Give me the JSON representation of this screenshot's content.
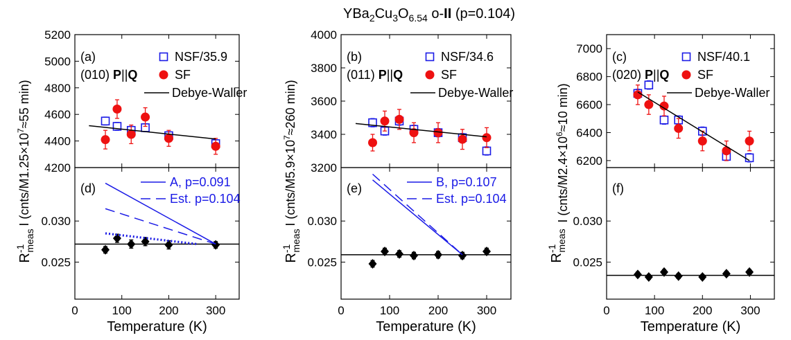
{
  "figure": {
    "title_parts": [
      {
        "t": "YBa",
        "sub": false
      },
      {
        "t": "2",
        "sub": true
      },
      {
        "t": "Cu",
        "sub": false
      },
      {
        "t": "3",
        "sub": true
      },
      {
        "t": "O",
        "sub": false
      },
      {
        "t": "6.54",
        "sub": true
      },
      {
        "t": " o-",
        "sub": false
      },
      {
        "t": "II",
        "sub": false,
        "bold": true
      },
      {
        "t": " (p=0.104)",
        "sub": false
      }
    ],
    "xlabel": "Temperature (K)",
    "x_ticks": [
      0,
      100,
      200,
      300
    ],
    "xlim": [
      0,
      350
    ],
    "colors": {
      "nsf": "#1a1ae6",
      "sf": "#ee1111",
      "dw": "#000000",
      "ref": "#1a1ae6",
      "ratio": "#000000"
    }
  },
  "chart_data": [
    {
      "type": "scatter",
      "panel": "(a)",
      "reflection": "(010)",
      "pq_label": "P||Q",
      "ylabel": "I (cnts/M1.25×10^7≈55 min)",
      "ylabel_parts": [
        {
          "t": "I (cnts/M1.25"
        },
        {
          "t": "×",
          "sym": true
        },
        {
          "t": "10"
        },
        {
          "t": "7",
          "sup": true
        },
        {
          "t": "≈",
          "sym": true
        },
        {
          "t": "55 min)"
        }
      ],
      "ylim": [
        4200,
        5200
      ],
      "y_ticks": [
        4200,
        4400,
        4600,
        4800,
        5000,
        5200
      ],
      "series": [
        {
          "name": "NSF/35.9",
          "marker": "open-square",
          "color": "#1a1ae6",
          "x": [
            65,
            90,
            120,
            150,
            200,
            300
          ],
          "y": [
            4550,
            4510,
            4480,
            4500,
            4440,
            4380
          ],
          "err": [
            30,
            30,
            30,
            30,
            30,
            30
          ]
        },
        {
          "name": "SF",
          "marker": "filled-circle",
          "color": "#ee1111",
          "x": [
            65,
            90,
            120,
            150,
            200,
            300
          ],
          "y": [
            4410,
            4640,
            4450,
            4580,
            4420,
            4360
          ],
          "err": [
            70,
            70,
            70,
            70,
            60,
            60
          ]
        },
        {
          "name": "Debye-Waller",
          "type": "line",
          "color": "#000000",
          "x": [
            30,
            300
          ],
          "y": [
            4515,
            4415
          ]
        }
      ]
    },
    {
      "type": "scatter",
      "panel": "(b)",
      "reflection": "(011)",
      "pq_label": "P||Q",
      "ylabel": "I (cnts/M5.9×10^7≈260 min)",
      "ylabel_parts": [
        {
          "t": "I (cnts/M5.9"
        },
        {
          "t": "×",
          "sym": true
        },
        {
          "t": "10"
        },
        {
          "t": "7",
          "sup": true
        },
        {
          "t": "≈",
          "sym": true
        },
        {
          "t": "260 min)"
        }
      ],
      "ylim": [
        3200,
        4000
      ],
      "y_ticks": [
        3200,
        3400,
        3600,
        3800,
        4000
      ],
      "series": [
        {
          "name": "NSF/34.6",
          "marker": "open-square",
          "color": "#1a1ae6",
          "x": [
            65,
            90,
            120,
            150,
            200,
            250,
            300
          ],
          "y": [
            3470,
            3420,
            3480,
            3430,
            3410,
            3380,
            3300
          ],
          "err": [
            25,
            25,
            25,
            25,
            25,
            25,
            25
          ]
        },
        {
          "name": "SF",
          "marker": "filled-circle",
          "color": "#ee1111",
          "x": [
            65,
            90,
            120,
            150,
            200,
            250,
            300
          ],
          "y": [
            3350,
            3480,
            3490,
            3410,
            3410,
            3370,
            3380
          ],
          "err": [
            50,
            60,
            60,
            60,
            60,
            60,
            60
          ]
        },
        {
          "name": "Debye-Waller",
          "type": "line",
          "color": "#000000",
          "x": [
            30,
            300
          ],
          "y": [
            3465,
            3385
          ]
        }
      ]
    },
    {
      "type": "scatter",
      "panel": "(c)",
      "reflection": "(020)",
      "pq_label": "P||Q",
      "ylabel": "I (cnts/M2.4×10^6≈10 min)",
      "ylabel_parts": [
        {
          "t": "I (cnts/M2.4"
        },
        {
          "t": "×",
          "sym": true
        },
        {
          "t": "10"
        },
        {
          "t": "6",
          "sup": true
        },
        {
          "t": "≈",
          "sym": true
        },
        {
          "t": "10 min)"
        }
      ],
      "ylim": [
        6150,
        7100
      ],
      "y_ticks": [
        6200,
        6400,
        6600,
        6800,
        7000
      ],
      "series": [
        {
          "name": "NSF/40.1",
          "marker": "open-square",
          "color": "#1a1ae6",
          "x": [
            65,
            88,
            120,
            150,
            200,
            250,
            298
          ],
          "y": [
            6680,
            6740,
            6490,
            6490,
            6410,
            6230,
            6220
          ],
          "err": [
            30,
            30,
            30,
            30,
            30,
            30,
            30
          ]
        },
        {
          "name": "SF",
          "marker": "filled-circle",
          "color": "#ee1111",
          "x": [
            65,
            88,
            120,
            150,
            200,
            250,
            298
          ],
          "y": [
            6670,
            6600,
            6590,
            6430,
            6340,
            6270,
            6340
          ],
          "err": [
            70,
            70,
            70,
            70,
            70,
            70,
            70
          ]
        },
        {
          "name": "Debye-Waller",
          "type": "line",
          "color": "#000000",
          "x": [
            65,
            298
          ],
          "y": [
            6690,
            6200
          ]
        }
      ]
    },
    {
      "type": "scatter",
      "panel": "(d)",
      "ylabel": "R^-1 meas",
      "ylim": [
        0.0205,
        0.0365
      ],
      "y_ticks": [
        0.025,
        0.03
      ],
      "y_tick_labels": [
        "0.025",
        "0.030"
      ],
      "hline": 0.0272,
      "series": [
        {
          "name": "ratio",
          "marker": "filled-diamond",
          "color": "#000000",
          "x": [
            65,
            90,
            120,
            150,
            200,
            300
          ],
          "y": [
            0.0265,
            0.0279,
            0.0272,
            0.0275,
            0.0271,
            0.0271
          ],
          "err": [
            0.0004,
            0.0005,
            0.0005,
            0.0005,
            0.0005,
            0.0004
          ]
        },
        {
          "name": "A, p=0.091",
          "type": "line",
          "dash": "solid",
          "color": "#1a1ae6",
          "x": [
            65,
            300
          ],
          "y": [
            0.0346,
            0.0272
          ]
        },
        {
          "name": "Est. p=0.104",
          "type": "line",
          "dash": "dash",
          "color": "#1a1ae6",
          "x": [
            65,
            300
          ],
          "y": [
            0.0315,
            0.0272
          ]
        },
        {
          "name": "",
          "type": "line",
          "dash": "dot",
          "color": "#1a1ae6",
          "x": [
            65,
            260
          ],
          "y": [
            0.0285,
            0.0272
          ]
        }
      ]
    },
    {
      "type": "scatter",
      "panel": "(e)",
      "ylabel": "R^-1 meas",
      "ylim": [
        0.0205,
        0.0365
      ],
      "y_ticks": [
        0.025,
        0.03
      ],
      "y_tick_labels": [
        "0.025",
        "0.030"
      ],
      "hline": 0.0259,
      "series": [
        {
          "name": "ratio",
          "marker": "filled-diamond",
          "color": "#000000",
          "x": [
            65,
            90,
            120,
            150,
            200,
            250,
            300
          ],
          "y": [
            0.0248,
            0.0263,
            0.026,
            0.0258,
            0.0259,
            0.0258,
            0.0263
          ],
          "err": [
            0.0004,
            0.0004,
            0.0004,
            0.0004,
            0.0004,
            0.0004,
            0.0004
          ]
        },
        {
          "name": "B, p=0.107",
          "type": "line",
          "dash": "solid",
          "color": "#1a1ae6",
          "x": [
            65,
            250
          ],
          "y": [
            0.035,
            0.0259
          ]
        },
        {
          "name": "Est. p=0.104",
          "type": "line",
          "dash": "dash",
          "color": "#1a1ae6",
          "x": [
            65,
            250
          ],
          "y": [
            0.0357,
            0.0259
          ]
        }
      ]
    },
    {
      "type": "scatter",
      "panel": "(f)",
      "ylabel": "R^-1 meas",
      "ylim": [
        0.0205,
        0.0365
      ],
      "y_ticks": [
        0.025,
        0.03
      ],
      "y_tick_labels": [
        "0.025",
        "0.030"
      ],
      "hline": 0.0234,
      "series": [
        {
          "name": "ratio",
          "marker": "filled-diamond",
          "color": "#000000",
          "x": [
            65,
            88,
            120,
            150,
            200,
            250,
            298
          ],
          "y": [
            0.0235,
            0.0232,
            0.0238,
            0.0233,
            0.0232,
            0.0236,
            0.0238
          ],
          "err": [
            0.0003,
            0.0003,
            0.0003,
            0.0003,
            0.0003,
            0.0003,
            0.0003
          ]
        }
      ]
    }
  ]
}
